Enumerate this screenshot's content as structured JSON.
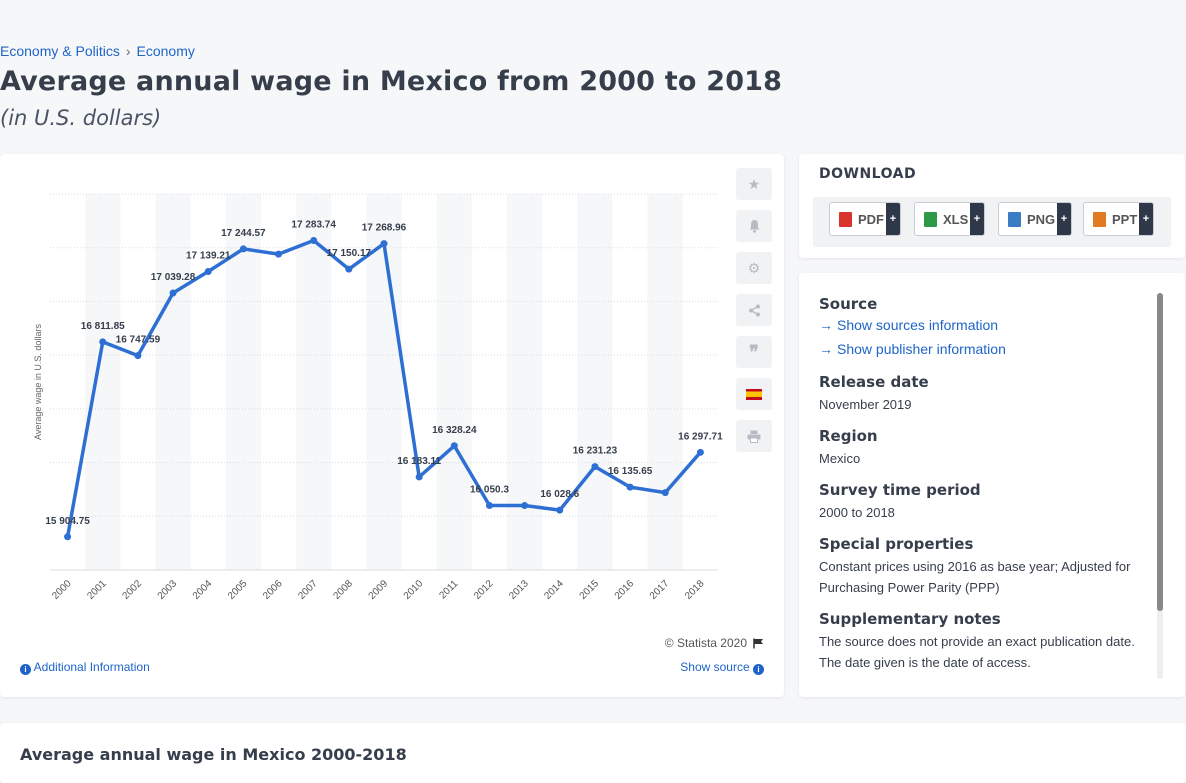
{
  "breadcrumb": {
    "item1": "Economy & Politics",
    "sep": "›",
    "item2": "Economy"
  },
  "page_title": "Average annual wage in Mexico from 2000 to 2018",
  "page_subtitle": "(in U.S. dollars)",
  "chart_footer": {
    "copyright": "© Statista 2020",
    "additional_info": "Additional Information",
    "show_source": "Show source"
  },
  "toolbar": {
    "icons": [
      "star-icon",
      "bell-icon",
      "gear-icon",
      "share-icon",
      "quote-icon",
      "spanish-flag-icon",
      "print-icon"
    ]
  },
  "download": {
    "title": "DOWNLOAD",
    "formats": [
      {
        "label": "PDF",
        "icon_color": "#d9342b"
      },
      {
        "label": "XLS",
        "icon_color": "#2e9a47"
      },
      {
        "label": "PNG",
        "icon_color": "#3b7dc4"
      },
      {
        "label": "PPT",
        "icon_color": "#e07b24"
      }
    ],
    "plus": "+"
  },
  "meta": {
    "source_head": "Source",
    "show_sources": "Show sources information",
    "show_publisher": "Show publisher information",
    "release_head": "Release date",
    "release_val": "November 2019",
    "region_head": "Region",
    "region_val": "Mexico",
    "survey_head": "Survey time period",
    "survey_val": "2000 to 2018",
    "special_head": "Special properties",
    "special_val": "Constant prices using 2016 as base year; Adjusted for Purchasing Power Parity (PPP)",
    "supp_head": "Supplementary notes",
    "supp_val": "The source does not provide an exact publication date. The date given is the date of access."
  },
  "bottom_title": "Average annual wage in Mexico 2000-2018",
  "chart_data": {
    "type": "line",
    "categories": [
      "2000",
      "2001",
      "2002",
      "2003",
      "2004",
      "2005",
      "2006",
      "2007",
      "2008",
      "2009",
      "2010",
      "2011",
      "2012",
      "2013",
      "2014",
      "2015",
      "2016",
      "2017",
      "2018"
    ],
    "values": [
      15904.75,
      16811.85,
      16747.59,
      17039.28,
      17139.21,
      17244.57,
      17220,
      17283.74,
      17150.17,
      17268.96,
      16183.11,
      16328.24,
      16050.3,
      16050,
      16028.6,
      16231.23,
      16135.65,
      16110,
      16297.71
    ],
    "labels": [
      "15 904.75",
      "16 811.85",
      "16 747.59",
      "17 039.28",
      "17 139.21",
      "17 244.57",
      "",
      "17 283.74",
      "17 150.17",
      "17 268.96",
      "16 183.11",
      "16 328.24",
      "16 050.3",
      "",
      "16 028.6",
      "16 231.23",
      "16 135.65",
      "",
      "16 297.71"
    ],
    "ylabel": "Average wage in U.S. dollars",
    "ylim": [
      15750,
      17500
    ],
    "grid": true,
    "line_color": "#2e6fd3"
  }
}
